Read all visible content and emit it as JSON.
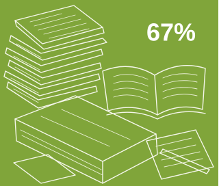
{
  "stat": "67%"
}
